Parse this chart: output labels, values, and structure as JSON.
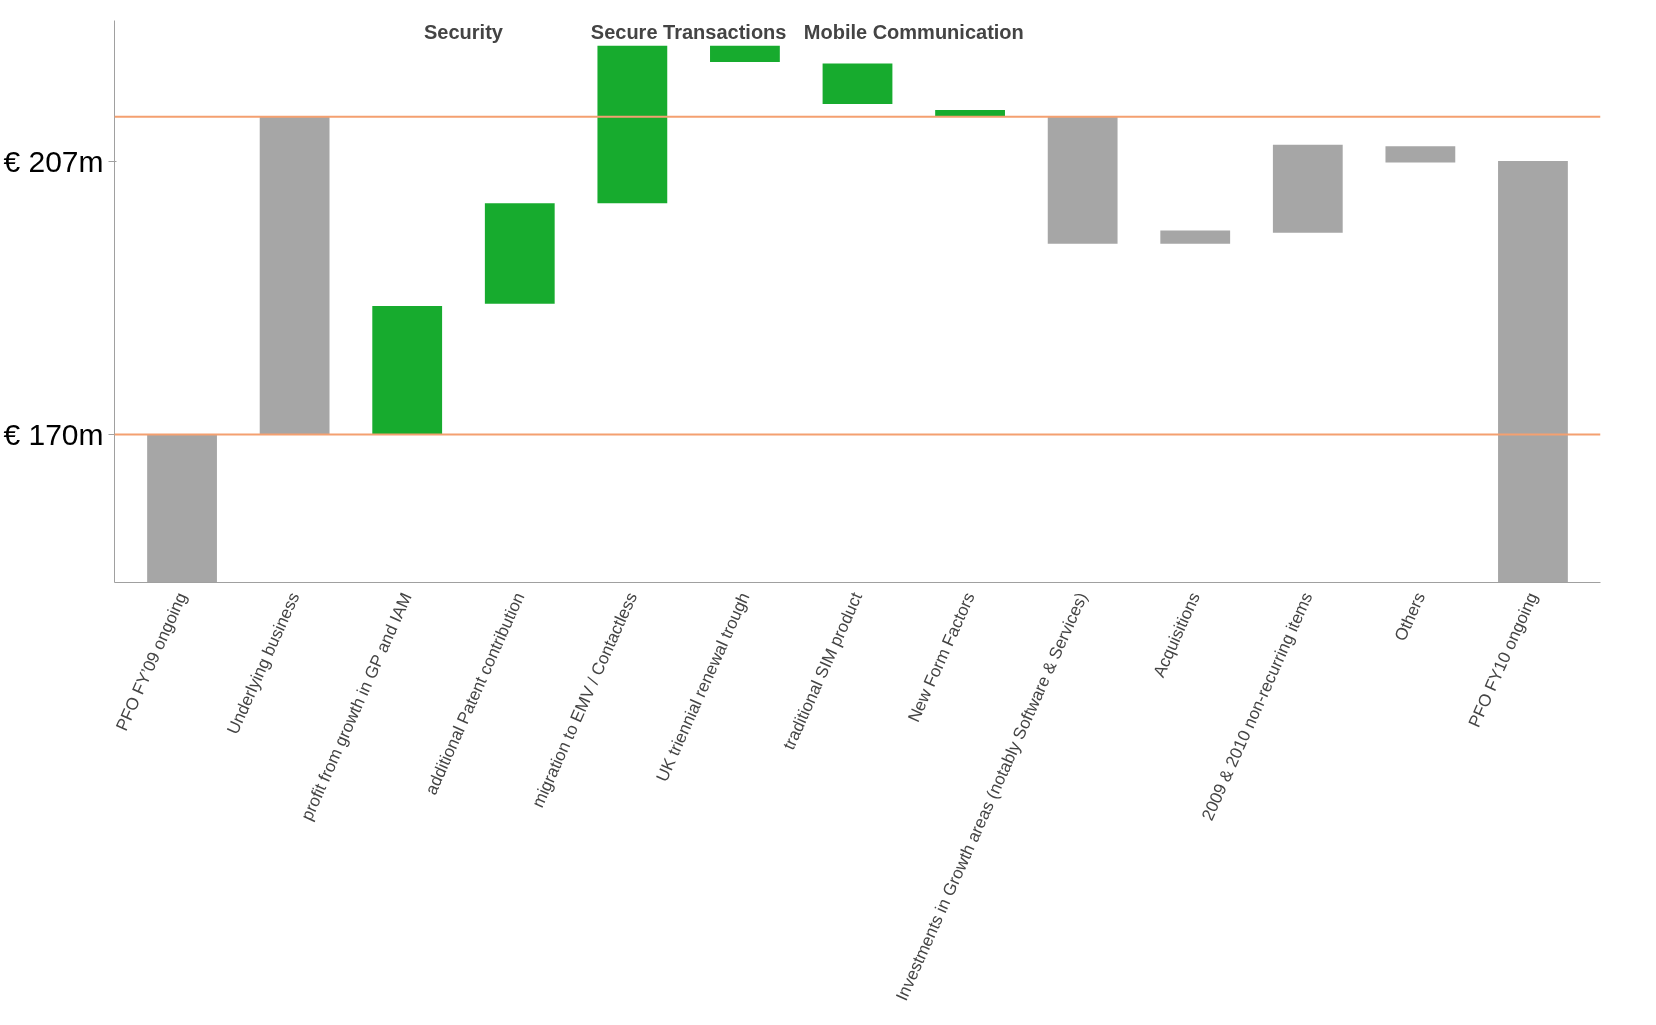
{
  "chart_data": {
    "type": "bar",
    "categories": [
      "PFO FY’09 ongoing",
      "Underlying business",
      "profit from growth in GP and IAM",
      "additional Patent contribution",
      "migration to EMV / Contactless",
      "UK triennial renewal trough",
      "traditional SIM product",
      "New Form Factors",
      "Investments in Growth areas (notably Software & Services)",
      "Acquisitions",
      "2009 & 2010 non-recurring items",
      "Others",
      "PFO FY10 ongoing"
    ],
    "values": [
      170,
      43,
      17.4,
      13.6,
      21.3,
      -2.2,
      -5.5,
      -0.9,
      -17.2,
      1.8,
      11.9,
      -2.2,
      207
    ],
    "base": [
      null,
      170,
      170,
      187.7,
      201.3,
      222.6,
      220.2,
      213.9,
      213.0,
      195.8,
      197.3,
      209.0,
      null
    ],
    "colors": [
      "#a6a6a6",
      "#a6a6a6",
      "#17ab2e",
      "#17ab2e",
      "#17ab2e",
      "#17ab2e",
      "#17ab2e",
      "#17ab2e",
      "#a6a6a6",
      "#a6a6a6",
      "#a6a6a6",
      "#a6a6a6",
      "#a6a6a6"
    ],
    "ylim": [
      150,
      226
    ],
    "yticks": [
      {
        "value": 170,
        "label": "€ 170m"
      },
      {
        "value": 207,
        "label": "€ 207m"
      }
    ],
    "ref_lines": [
      {
        "axis": "y",
        "value": 170,
        "color": "#f4a070"
      },
      {
        "axis": "y",
        "value": 213,
        "color": "#f4a070"
      }
    ],
    "annotations": [
      "Security",
      "Secure Transactions",
      "Mobile Communication"
    ]
  }
}
